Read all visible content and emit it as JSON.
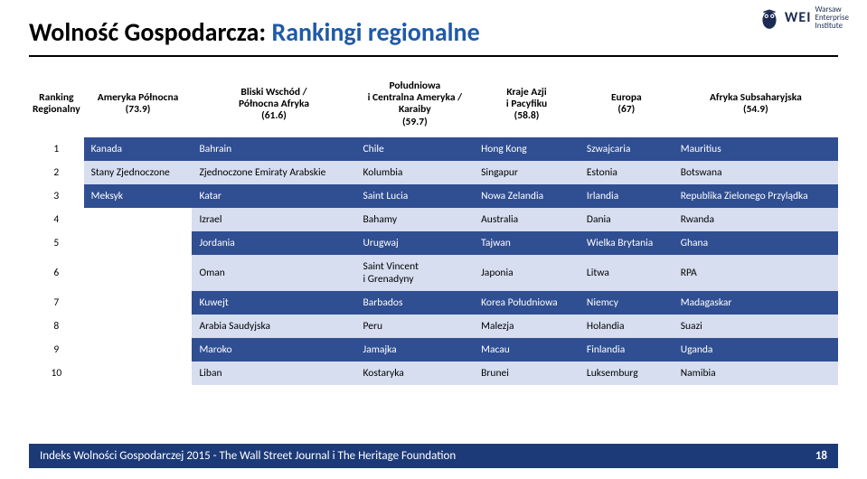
{
  "logo": {
    "wei": "WEI",
    "line1": "Warsaw",
    "line2": "Enterprise",
    "line3": "Institute"
  },
  "title_a": "Wolność Gospodarcza:",
  "title_b": "Rankingi regionalne",
  "columns": [
    "Ranking\nRegionalny",
    "Ameryka Północna\n(73.9)",
    "Bliski Wschód /\nPółnocna Afryka\n(61.6)",
    "Południowa\ni Centralna Ameryka /\nKaraiby\n(59.7)",
    "Kraje Azji\ni Pacyfiku\n(58.8)",
    "Europa\n(67)",
    "Afryka Subsaharyjska\n(54.9)"
  ],
  "rows": [
    {
      "n": "1",
      "c": [
        "Kanada",
        "Bahrain",
        "Chile",
        "Hong Kong",
        "Szwajcaria",
        "Mauritius"
      ]
    },
    {
      "n": "2",
      "c": [
        "Stany Zjednoczone",
        "Zjednoczone Emiraty Arabskie",
        "Kolumbia",
        "Singapur",
        "Estonia",
        "Botswana"
      ]
    },
    {
      "n": "3",
      "c": [
        "Meksyk",
        "Katar",
        "Saint Lucia",
        "Nowa Zelandia",
        "Irlandia",
        "Republika Zielonego Przylądka"
      ]
    },
    {
      "n": "4",
      "c": [
        "",
        "Izrael",
        "Bahamy",
        "Australia",
        "Dania",
        "Rwanda"
      ]
    },
    {
      "n": "5",
      "c": [
        "",
        "Jordania",
        "Urugwaj",
        "Tajwan",
        "Wielka Brytania",
        "Ghana"
      ]
    },
    {
      "n": "6",
      "c": [
        "",
        "Oman",
        "Saint Vincent\ni Grenadyny",
        "Japonia",
        "Litwa",
        "RPA"
      ]
    },
    {
      "n": "7",
      "c": [
        "",
        "Kuwejt",
        "Barbados",
        "Korea Południowa",
        "Niemcy",
        "Madagaskar"
      ]
    },
    {
      "n": "8",
      "c": [
        "",
        "Arabia Saudyjska",
        "Peru",
        "Malezja",
        "Holandia",
        "Suazi"
      ]
    },
    {
      "n": "9",
      "c": [
        "",
        "Maroko",
        "Jamajka",
        "Macau",
        "Finlandia",
        "Uganda"
      ]
    },
    {
      "n": "10",
      "c": [
        "",
        "Liban",
        "Kostaryka",
        "Brunei",
        "Luksemburg",
        "Namibia"
      ]
    }
  ],
  "footer": "Indeks Wolności Gospodarczej 2015 - The Wall Street Journal i The Heritage Foundation",
  "page": "18",
  "colors": {
    "dark_band": "#304e92",
    "light_band": "#d6def0",
    "footer_bg": "#1c3a78",
    "title_blue": "#1f5aa6"
  }
}
